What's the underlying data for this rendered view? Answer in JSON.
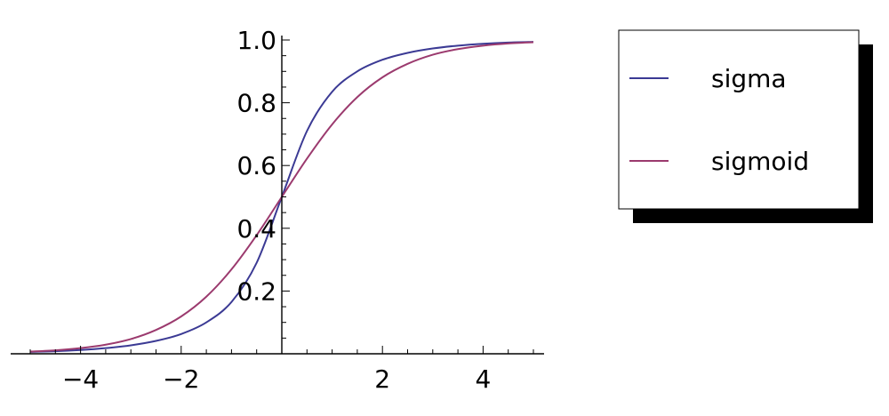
{
  "chart_data": {
    "type": "line",
    "title": "",
    "xlabel": "",
    "ylabel": "",
    "xlim": [
      -5,
      5
    ],
    "ylim": [
      0,
      1
    ],
    "grid": false,
    "legend_position": "top-right",
    "x_ticks": [
      {
        "value": -4,
        "label": "−4"
      },
      {
        "value": -2,
        "label": "−2"
      },
      {
        "value": 2,
        "label": "2"
      },
      {
        "value": 4,
        "label": "4"
      }
    ],
    "y_ticks": [
      {
        "value": 0.2,
        "label": "0.2"
      },
      {
        "value": 0.4,
        "label": "0.4"
      },
      {
        "value": 0.6,
        "label": "0.6"
      },
      {
        "value": 0.8,
        "label": "0.8"
      },
      {
        "value": 1.0,
        "label": "1.0"
      }
    ],
    "x": [
      -5,
      -4.5,
      -4,
      -3.5,
      -3,
      -2.5,
      -2,
      -1.5,
      -1,
      -0.5,
      0,
      0.5,
      1,
      1.5,
      2,
      2.5,
      3,
      3.5,
      4,
      4.5,
      5
    ],
    "series": [
      {
        "name": "sigma",
        "color": "#3b3a94",
        "values": [
          0.006,
          0.008,
          0.012,
          0.018,
          0.027,
          0.041,
          0.063,
          0.1,
          0.165,
          0.29,
          0.5,
          0.71,
          0.835,
          0.9,
          0.937,
          0.959,
          0.973,
          0.982,
          0.988,
          0.992,
          0.994
        ]
      },
      {
        "name": "sigmoid",
        "color": "#9b3a6e",
        "values": [
          0.007,
          0.011,
          0.018,
          0.029,
          0.047,
          0.076,
          0.119,
          0.182,
          0.269,
          0.378,
          0.5,
          0.622,
          0.731,
          0.818,
          0.881,
          0.924,
          0.953,
          0.971,
          0.982,
          0.989,
          0.993
        ]
      }
    ]
  }
}
